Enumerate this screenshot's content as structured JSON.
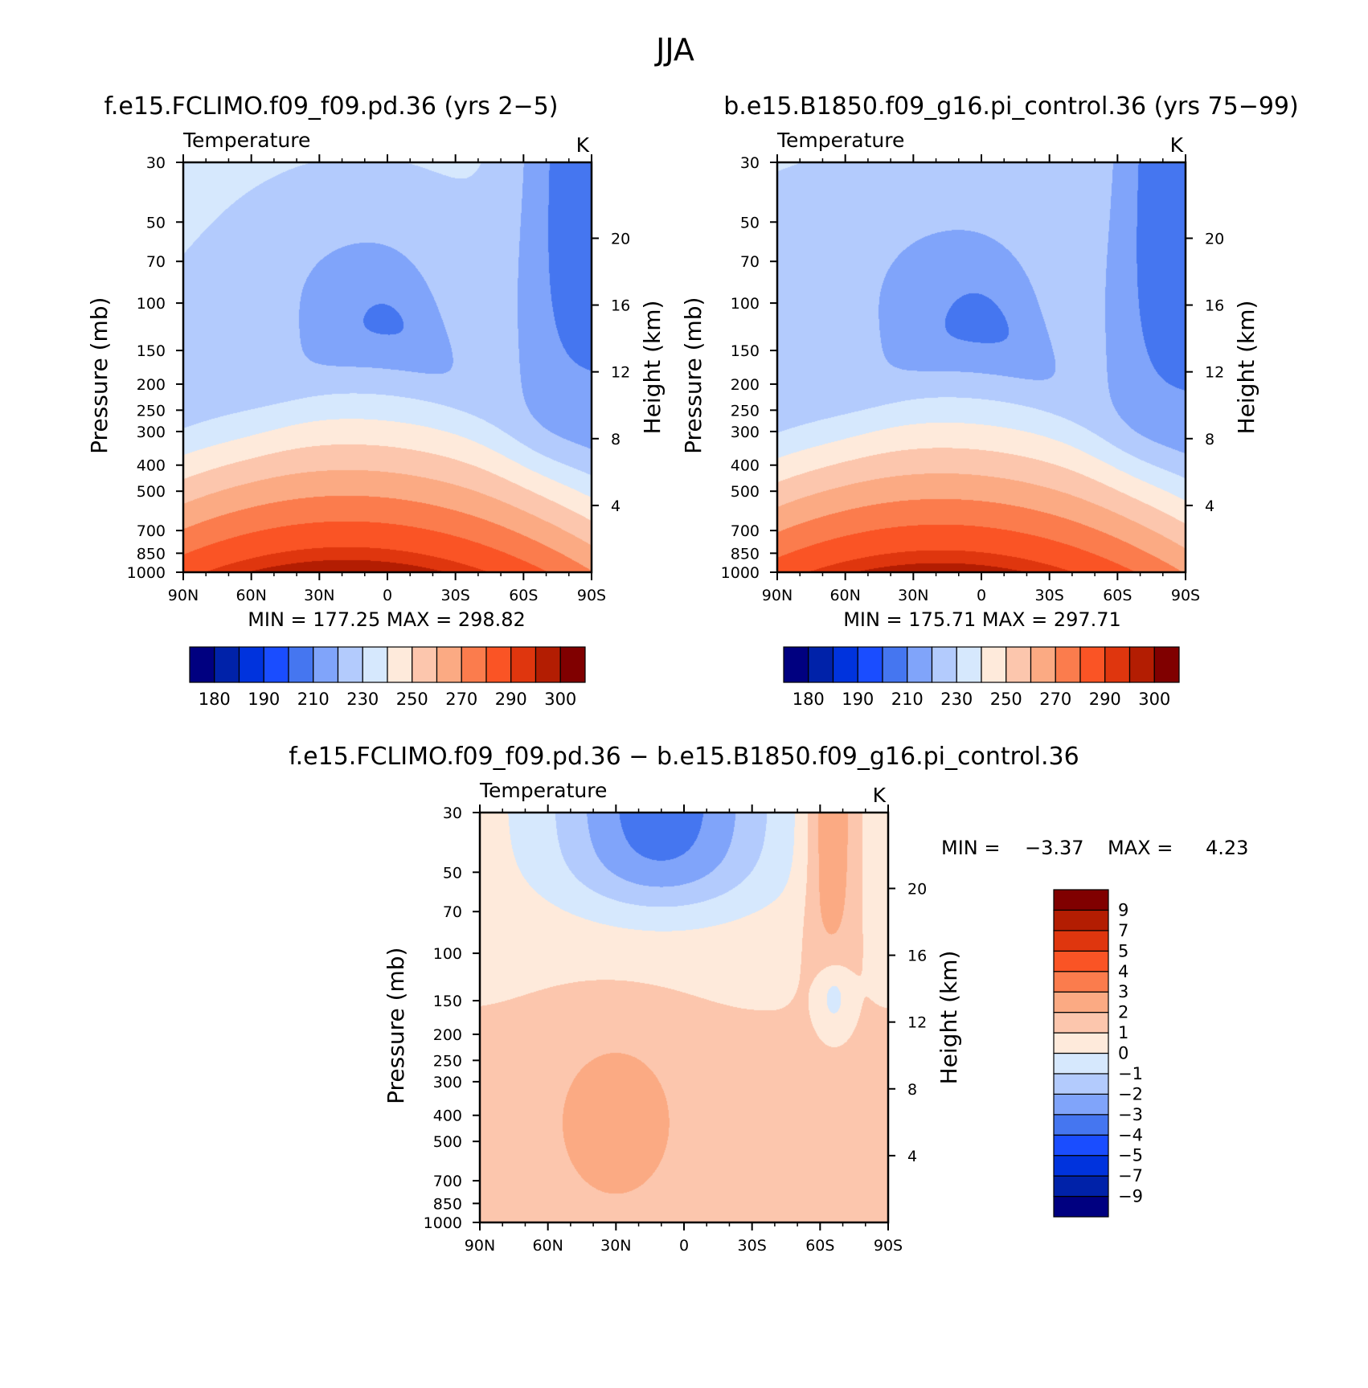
{
  "figure_title": "JJA",
  "colors": {
    "abs_palette": [
      "#000080",
      "#0022a9",
      "#0033dd",
      "#1a4dff",
      "#4576f0",
      "#80a4fa",
      "#b3cbfd",
      "#d6e8fd",
      "#feeadb",
      "#fcc6ad",
      "#fbaa83",
      "#fb7c4d",
      "#fa5425",
      "#df360e",
      "#b31d02",
      "#800000"
    ],
    "diff_palette": [
      "#000080",
      "#0022a9",
      "#0033dd",
      "#1a4dff",
      "#4576f0",
      "#80a4fa",
      "#b3cbfd",
      "#d6e8fd",
      "#feeadb",
      "#fcc6ad",
      "#fbaa83",
      "#fb7c4d",
      "#fa5425",
      "#df360e",
      "#b31d02",
      "#800000"
    ]
  },
  "chart_data": [
    {
      "type": "heatmap",
      "title": "f.e15.FCLIMO.f09_f09.pd.36 (yrs 2-5)",
      "left_label": "Temperature",
      "right_label": "K",
      "xlabel": "",
      "ylabel": "Pressure (mb)",
      "y2label": "Height (km)",
      "x_range": [
        90,
        -90
      ],
      "x_ticks": [
        {
          "v": 90,
          "t": "90N"
        },
        {
          "v": 60,
          "t": "60N"
        },
        {
          "v": 30,
          "t": "30N"
        },
        {
          "v": 0,
          "t": "0"
        },
        {
          "v": -30,
          "t": "30S"
        },
        {
          "v": -60,
          "t": "60S"
        },
        {
          "v": -90,
          "t": "90S"
        }
      ],
      "y_range": [
        1000,
        30
      ],
      "y_ticks": [
        30,
        50,
        70,
        100,
        150,
        200,
        250,
        300,
        400,
        500,
        700,
        850,
        1000
      ],
      "y2_ticks": [
        4,
        8,
        12,
        16,
        20
      ],
      "min_label": "MIN = 177.25",
      "max_label": "MAX = 298.82",
      "min": 177.25,
      "max": 298.82,
      "levels": [
        180,
        185,
        190,
        200,
        210,
        220,
        230,
        240,
        250,
        260,
        270,
        280,
        290,
        295,
        300
      ],
      "colorbar_labels": [
        "180",
        "190",
        "210",
        "230",
        "250",
        "270",
        "290",
        "300"
      ],
      "model": "pd"
    },
    {
      "type": "heatmap",
      "title": "b.e15.B1850.f09_g16.pi_control.36 (yrs 75-99)",
      "left_label": "Temperature",
      "right_label": "K",
      "xlabel": "",
      "ylabel": "Pressure (mb)",
      "y2label": "Height (km)",
      "x_range": [
        90,
        -90
      ],
      "x_ticks": [
        {
          "v": 90,
          "t": "90N"
        },
        {
          "v": 60,
          "t": "60N"
        },
        {
          "v": 30,
          "t": "30N"
        },
        {
          "v": 0,
          "t": "0"
        },
        {
          "v": -30,
          "t": "30S"
        },
        {
          "v": -60,
          "t": "60S"
        },
        {
          "v": -90,
          "t": "90S"
        }
      ],
      "y_range": [
        1000,
        30
      ],
      "y_ticks": [
        30,
        50,
        70,
        100,
        150,
        200,
        250,
        300,
        400,
        500,
        700,
        850,
        1000
      ],
      "y2_ticks": [
        4,
        8,
        12,
        16,
        20
      ],
      "min_label": "MIN = 175.71",
      "max_label": "MAX = 297.71",
      "min": 175.71,
      "max": 297.71,
      "levels": [
        180,
        185,
        190,
        200,
        210,
        220,
        230,
        240,
        250,
        260,
        270,
        280,
        290,
        295,
        300
      ],
      "colorbar_labels": [
        "180",
        "190",
        "210",
        "230",
        "250",
        "270",
        "290",
        "300"
      ],
      "model": "pi"
    },
    {
      "type": "heatmap",
      "title": "f.e15.FCLIMO.f09_f09.pd.36 - b.e15.B1850.f09_g16.pi_control.36",
      "left_label": "Temperature",
      "right_label": "K",
      "xlabel": "",
      "ylabel": "Pressure (mb)",
      "y2label": "Height (km)",
      "x_range": [
        90,
        -90
      ],
      "x_ticks": [
        {
          "v": 90,
          "t": "90N"
        },
        {
          "v": 60,
          "t": "60N"
        },
        {
          "v": 30,
          "t": "30N"
        },
        {
          "v": 0,
          "t": "0"
        },
        {
          "v": -30,
          "t": "30S"
        },
        {
          "v": -60,
          "t": "60S"
        },
        {
          "v": -90,
          "t": "90S"
        }
      ],
      "y_range": [
        1000,
        30
      ],
      "y_ticks": [
        30,
        50,
        70,
        100,
        150,
        200,
        250,
        300,
        400,
        500,
        700,
        850,
        1000
      ],
      "y2_ticks": [
        4,
        8,
        12,
        16,
        20
      ],
      "min_label": "MIN =",
      "min_value": "-3.37",
      "max_label": "MAX =",
      "max_value": "4.23",
      "min": -3.37,
      "max": 4.23,
      "levels": [
        -9,
        -7,
        -5,
        -4,
        -3,
        -2,
        -1,
        0,
        1,
        2,
        3,
        4,
        5,
        7,
        9
      ],
      "colorbar_labels": [
        "9",
        "7",
        "5",
        "4",
        "3",
        "2",
        "1",
        "0",
        "-1",
        "-2",
        "-3",
        "-4",
        "-5",
        "-7",
        "-9"
      ],
      "model": "diff"
    }
  ]
}
